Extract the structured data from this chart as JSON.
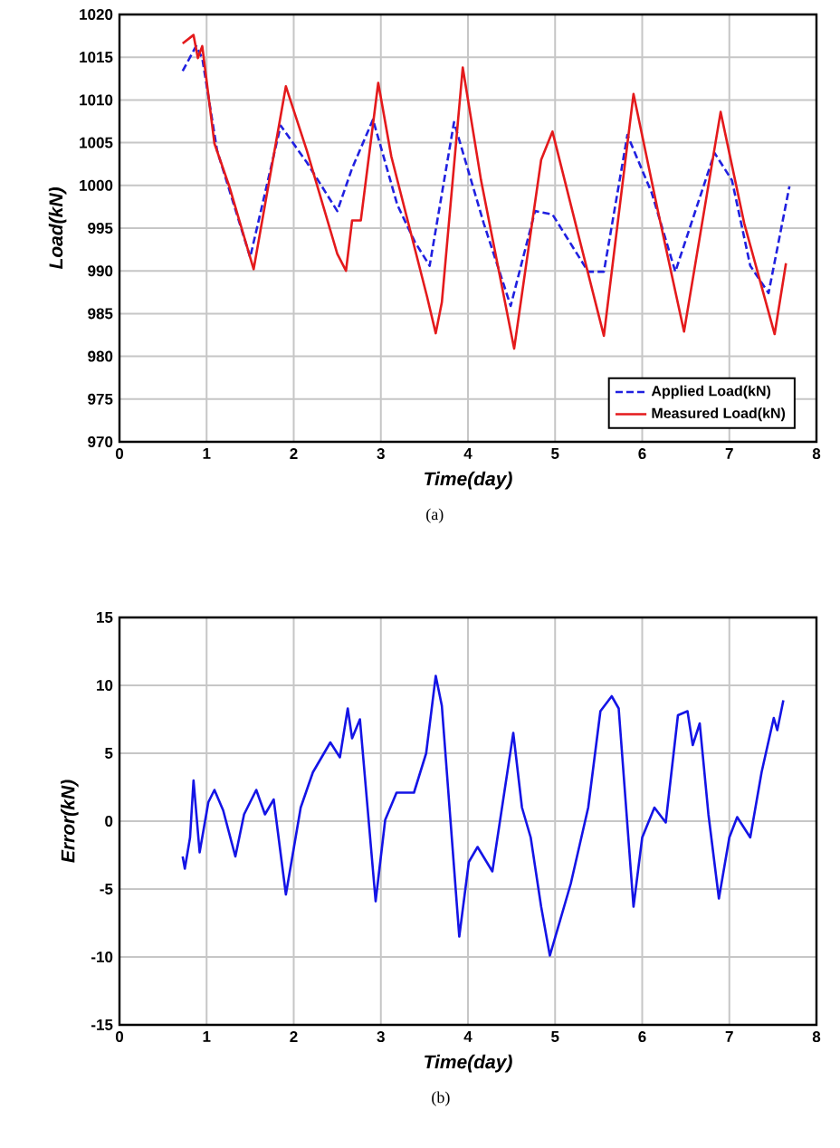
{
  "chart_data": [
    {
      "type": "line",
      "xlabel": "Time(day)",
      "ylabel": "Load(kN)",
      "xlim": [
        0,
        8
      ],
      "ylim": [
        970,
        1020
      ],
      "xticks": [
        0,
        1,
        2,
        3,
        4,
        5,
        6,
        7,
        8
      ],
      "yticks": [
        970,
        975,
        980,
        985,
        990,
        995,
        1000,
        1005,
        1010,
        1015,
        1020
      ],
      "grid": true,
      "legend": "bottom right",
      "annotations": [
        "(a)"
      ],
      "series": [
        {
          "name": "Applied Load(kN)",
          "color": "#2020e0",
          "line_style": "dashed",
          "x": [
            0.725,
            0.88,
            0.95,
            1.12,
            1.5,
            1.85,
            2.15,
            2.5,
            2.67,
            2.91,
            3.19,
            3.39,
            3.56,
            3.84,
            4.18,
            4.49,
            4.77,
            4.97,
            5.38,
            5.56,
            5.83,
            6.11,
            6.38,
            6.83,
            7.03,
            7.24,
            7.45,
            7.69
          ],
          "values": [
            1013.4,
            1016.3,
            1014.9,
            1004.1,
            991.6,
            1007,
            1002.7,
            997,
            1002,
            1007.7,
            997.7,
            993.4,
            990.6,
            1007.4,
            995.6,
            985.9,
            997,
            996.6,
            989.9,
            989.9,
            1005.9,
            999.1,
            989.9,
            1003.8,
            1000.6,
            990.6,
            987.4,
            999.9
          ]
        },
        {
          "name": "Measured Load(kN)",
          "color": "#e41a1c",
          "line_style": "solid",
          "x": [
            0.725,
            0.85,
            0.9,
            0.95,
            1.09,
            1.26,
            1.54,
            1.91,
            2.15,
            2.5,
            2.6,
            2.67,
            2.77,
            2.97,
            3.12,
            3.53,
            3.63,
            3.7,
            3.94,
            4.15,
            4.53,
            4.84,
            4.97,
            5.25,
            5.56,
            5.9,
            6.18,
            6.48,
            6.9,
            7.17,
            7.52,
            7.65
          ],
          "values": [
            1016.6,
            1017.6,
            1014.9,
            1016.3,
            1004.9,
            999.9,
            990.2,
            1011.6,
            1004.1,
            992,
            990,
            995.9,
            995.9,
            1012,
            1003.4,
            987,
            982.7,
            986.3,
            1013.8,
            1000.6,
            980.9,
            1003,
            1006.3,
            994.9,
            982.4,
            1010.7,
            997,
            982.9,
            1008.6,
            995.6,
            982.6,
            990.9
          ]
        }
      ]
    },
    {
      "type": "line",
      "xlabel": "Time(day)",
      "ylabel": "Error(kN)",
      "xlim": [
        0,
        8
      ],
      "ylim": [
        -15,
        15
      ],
      "xticks": [
        0,
        1,
        2,
        3,
        4,
        5,
        6,
        7,
        8
      ],
      "yticks": [
        -15,
        -10,
        -5,
        0,
        5,
        10,
        15
      ],
      "grid": true,
      "annotations": [
        "(b)"
      ],
      "series": [
        {
          "color": "#1414e6",
          "line_style": "solid",
          "x": [
            0.725,
            0.75,
            0.81,
            0.85,
            0.92,
            1.02,
            1.09,
            1.19,
            1.33,
            1.43,
            1.57,
            1.67,
            1.77,
            1.91,
            2.08,
            2.22,
            2.42,
            2.53,
            2.62,
            2.67,
            2.76,
            2.94,
            3.05,
            3.18,
            3.38,
            3.52,
            3.63,
            3.7,
            3.9,
            4.01,
            4.11,
            4.28,
            4.52,
            4.62,
            4.72,
            4.84,
            4.94,
            5.18,
            5.38,
            5.52,
            5.65,
            5.73,
            5.9,
            6.0,
            6.14,
            6.27,
            6.41,
            6.52,
            6.58,
            6.66,
            6.76,
            6.88,
            7.0,
            7.09,
            7.24,
            7.37,
            7.51,
            7.55,
            7.62
          ],
          "values": [
            -2.6,
            -3.5,
            -1.2,
            3.0,
            -2.3,
            1.4,
            2.3,
            0.8,
            -2.6,
            0.5,
            2.3,
            0.5,
            1.6,
            -5.4,
            1.0,
            3.6,
            5.8,
            4.7,
            8.3,
            6.1,
            7.5,
            -5.9,
            0.1,
            2.1,
            2.1,
            5.0,
            10.7,
            8.5,
            -8.5,
            -3.0,
            -1.9,
            -3.7,
            6.5,
            1.0,
            -1.2,
            -6.3,
            -9.9,
            -4.6,
            1.0,
            8.1,
            9.2,
            8.3,
            -6.3,
            -1.2,
            1.0,
            -0.1,
            7.8,
            8.1,
            5.6,
            7.2,
            0.5,
            -5.7,
            -1.2,
            0.3,
            -1.2,
            3.6,
            7.6,
            6.7,
            8.9
          ]
        }
      ]
    }
  ]
}
